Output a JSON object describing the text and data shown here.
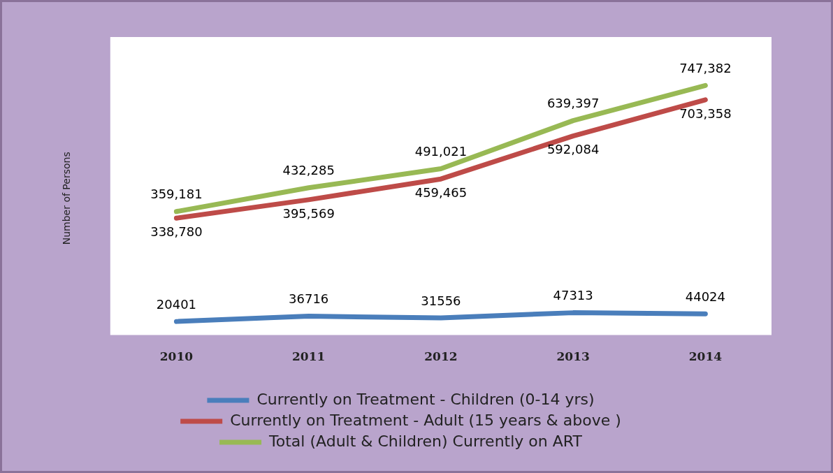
{
  "chart_data": {
    "type": "line",
    "ylabel": "Number of Persons",
    "categories": [
      "2010",
      "2011",
      "2012",
      "2013",
      "2014"
    ],
    "series": [
      {
        "name": "Currently on Treatment - Children (0-14 yrs)",
        "color": "#4a7ebb",
        "values": [
          20401,
          36716,
          31556,
          47313,
          44024
        ],
        "value_labels": [
          "20401",
          "36716",
          "31556",
          "47313",
          "44024"
        ]
      },
      {
        "name": "Currently on Treatment - Adult (15 years & above )",
        "color": "#be4b48",
        "values": [
          338780,
          395569,
          459465,
          592084,
          703358
        ],
        "value_labels": [
          "338,780",
          "395,569",
          "459,465",
          "592,084",
          "703,358"
        ]
      },
      {
        "name": "Total (Adult & Children) Currently on ART",
        "color": "#98b954",
        "values": [
          359181,
          432285,
          491021,
          639397,
          747382
        ],
        "value_labels": [
          "359,181",
          "432,285",
          "491,021",
          "639,397",
          "747,382"
        ]
      }
    ],
    "legend": "bottom",
    "tick_labels": "x",
    "marker": "none",
    "grid": false
  }
}
